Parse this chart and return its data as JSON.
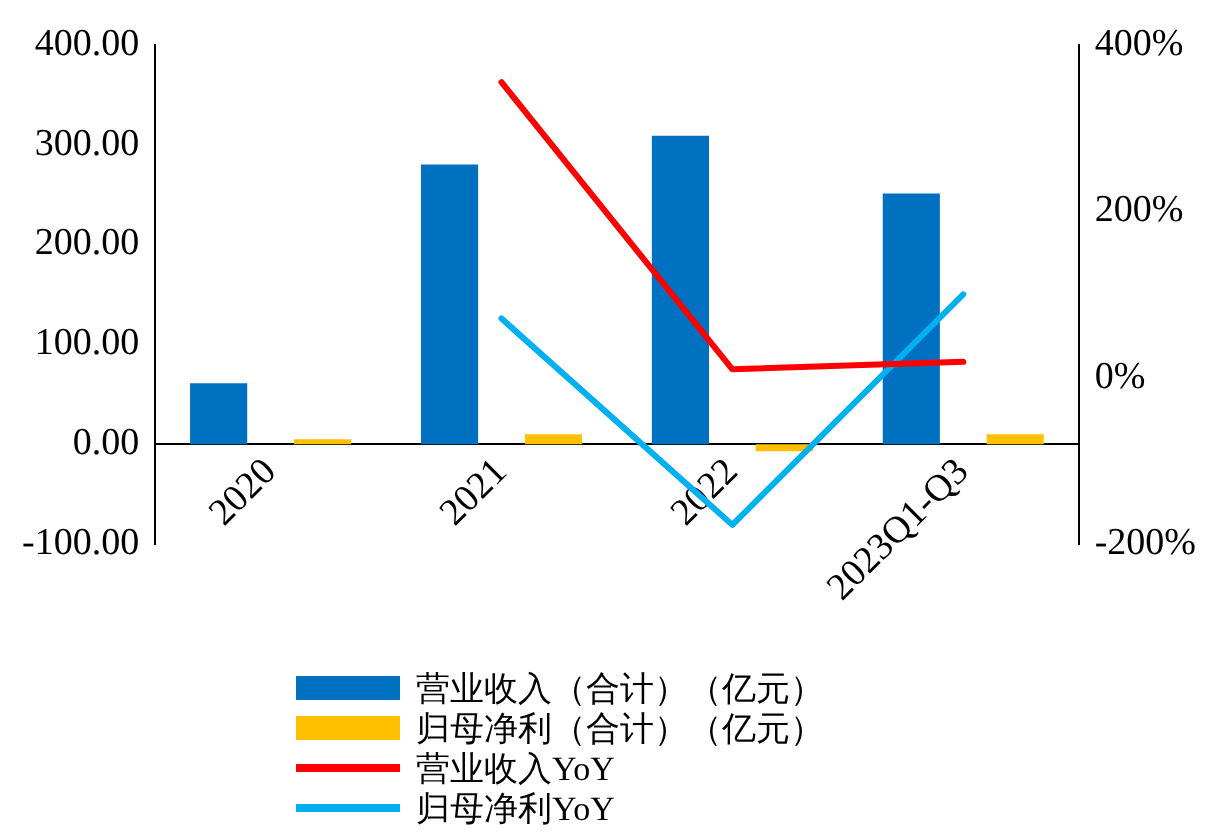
{
  "chart_data": {
    "type": "bar",
    "categories": [
      "2020",
      "2021",
      "2022",
      "2023Q1-Q3"
    ],
    "series": [
      {
        "name": "营业收入（合计）（亿元）",
        "color": "#0070c0",
        "values": [
          61,
          280,
          309,
          251
        ]
      },
      {
        "name": "归母净利（合计）（亿元）",
        "color": "#ffc000",
        "values": [
          5,
          10,
          -7,
          10
        ]
      },
      {
        "name": "营业收入YoY",
        "type": "line",
        "axis": "y2",
        "color": "#ff0000",
        "values": [
          null,
          355,
          10,
          19
        ]
      },
      {
        "name": "归母净利YoY",
        "type": "line",
        "axis": "y2",
        "color": "#00b0f0",
        "values": [
          null,
          71,
          -177,
          100
        ]
      }
    ],
    "ylim": [
      -100,
      400
    ],
    "yticks": [
      {
        "value": -100,
        "label": "-100.00"
      },
      {
        "value": 0,
        "label": "0.00"
      },
      {
        "value": 100,
        "label": "100.00"
      },
      {
        "value": 200,
        "label": "200.00"
      },
      {
        "value": 300,
        "label": "300.00"
      },
      {
        "value": 400,
        "label": "400.00"
      }
    ],
    "y2lim": [
      -200,
      400
    ],
    "y2ticks": [
      {
        "value": -200,
        "label": "-200%"
      },
      {
        "value": 0,
        "label": "0%"
      },
      {
        "value": 200,
        "label": "200%"
      },
      {
        "value": 400,
        "label": "400%"
      }
    ],
    "grid": false,
    "legend": "bottom",
    "marker": "none"
  }
}
